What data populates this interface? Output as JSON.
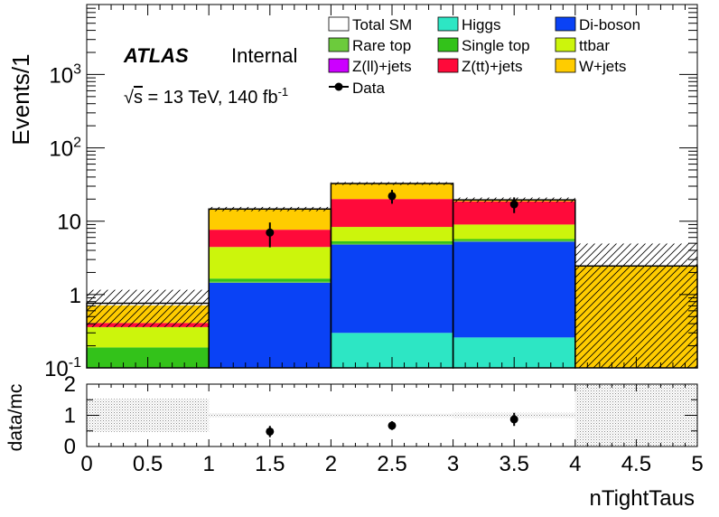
{
  "chart_data": {
    "type": "bar",
    "stacked": true,
    "y_scale": "log",
    "x": {
      "label": "nTightTaus",
      "lim": [
        0,
        5
      ],
      "ticks": [
        "0",
        "0.5",
        "1",
        "1.5",
        "2",
        "2.5",
        "3",
        "3.5",
        "4",
        "4.5",
        "5"
      ],
      "bin_edges": [
        0,
        1,
        2,
        3,
        4,
        5
      ]
    },
    "y": {
      "label": "Events/1",
      "lim": [
        0.1,
        9000
      ],
      "major_ticks": [
        {
          "value": 0.1,
          "base": "10",
          "exp": "-1"
        },
        {
          "value": 1,
          "text": "1"
        },
        {
          "value": 10,
          "text": "10"
        },
        {
          "value": 100,
          "base": "10",
          "exp": "2"
        },
        {
          "value": 1000,
          "base": "10",
          "exp": "3"
        }
      ]
    },
    "atlas_label": "ATLAS",
    "status_label": "Internal",
    "energy_label": {
      "sqrt": "√",
      "s": "s",
      "rest": " = 13 TeV, 140 fb",
      "sup": "-1"
    },
    "legend": {
      "placement": "top-right",
      "items": [
        {
          "name": "Total SM",
          "style": "box",
          "color": "#ffffff"
        },
        {
          "name": "Higgs",
          "style": "box",
          "color": "#2de6c4"
        },
        {
          "name": "Di-boson",
          "style": "box",
          "color": "#0a42f5"
        },
        {
          "name": "Rare top",
          "style": "box",
          "color": "#6ccb3c"
        },
        {
          "name": "Single top",
          "style": "box",
          "color": "#33c21a"
        },
        {
          "name": "ttbar",
          "style": "box",
          "color": "#ccf50c"
        },
        {
          "name": "Z(ll)+jets",
          "style": "box",
          "color": "#cc00ff"
        },
        {
          "name": "Z(tt)+jets",
          "style": "box",
          "color": "#ff0a3a"
        },
        {
          "name": "W+jets",
          "style": "box",
          "color": "#ffcc00"
        },
        {
          "name": "Data",
          "style": "marker",
          "color": "#000000"
        }
      ]
    },
    "series": [
      {
        "name": "Higgs",
        "color": "#2de6c4",
        "values": [
          0.0,
          0.0,
          0.3,
          0.26,
          0.0
        ]
      },
      {
        "name": "Di-boson",
        "color": "#0a42f5",
        "values": [
          0.0,
          1.45,
          4.5,
          5.0,
          0.0
        ]
      },
      {
        "name": "Rare top",
        "color": "#6ccb3c",
        "values": [
          0.0,
          0.05,
          0.15,
          0.15,
          0.0
        ]
      },
      {
        "name": "Single top",
        "color": "#33c21a",
        "values": [
          0.19,
          0.15,
          0.4,
          0.3,
          0.0
        ]
      },
      {
        "name": "ttbar",
        "color": "#ccf50c",
        "values": [
          0.17,
          2.8,
          3.0,
          3.3,
          0.0
        ]
      },
      {
        "name": "Z(ll)+jets",
        "color": "#cc00ff",
        "values": [
          0.0,
          0.0,
          0.0,
          0.0,
          0.0
        ]
      },
      {
        "name": "Z(tt)+jets",
        "color": "#ff0a3a",
        "values": [
          0.05,
          3.2,
          11.7,
          9.6,
          0.0
        ]
      },
      {
        "name": "W+jets",
        "color": "#ffcc00",
        "values": [
          0.3,
          7.0,
          12.6,
          0.9,
          2.45
        ]
      }
    ],
    "total_sm": [
      0.76,
      14.65,
      32.65,
      19.51,
      2.45
    ],
    "total_sm_uncertainty": [
      0.4,
      1.0,
      1.5,
      1.5,
      2.5
    ],
    "data": [
      {
        "x": 1.5,
        "y": 7.0,
        "yerr": 2.6
      },
      {
        "x": 2.5,
        "y": 22.0,
        "yerr": 4.7
      },
      {
        "x": 3.5,
        "y": 17.0,
        "yerr": 4.1
      }
    ],
    "ratio_panel": {
      "ylabel": "data/mc",
      "ylim": [
        0,
        2
      ],
      "ticks": [
        "0",
        "1",
        "2"
      ],
      "band_half_width": [
        0.53,
        0.07,
        0.05,
        0.08,
        1.0
      ],
      "points": [
        {
          "x": 1.5,
          "y": 0.48,
          "yerr": 0.18
        },
        {
          "x": 2.5,
          "y": 0.67,
          "yerr": 0.14
        },
        {
          "x": 3.5,
          "y": 0.87,
          "yerr": 0.21
        }
      ]
    }
  }
}
